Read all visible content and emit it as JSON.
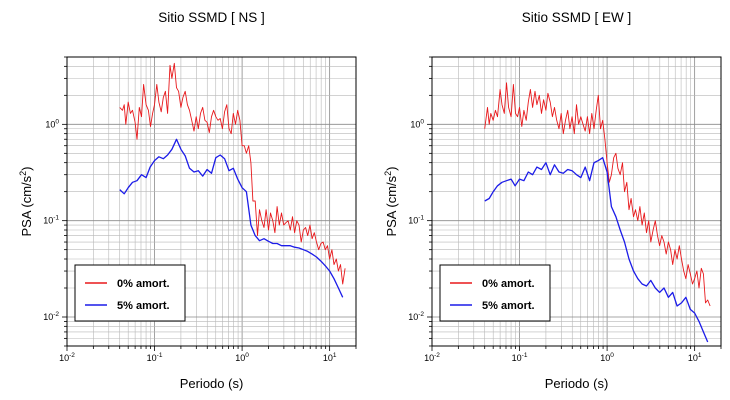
{
  "chart_data": [
    {
      "type": "line",
      "title": "Sitio SSMD [ NS ]",
      "xlabel": "Periodo (s)",
      "ylabel": {
        "pre": "PSA (cm/s",
        "sup": "2",
        "post": ")"
      },
      "xscale": "log",
      "yscale": "log",
      "xlim": [
        0.01,
        20
      ],
      "ylim": [
        0.005,
        5
      ],
      "grid": true,
      "legend_position": "bottom-left",
      "x_ticks": [
        {
          "base": "10",
          "exp": "-2"
        },
        {
          "base": "10",
          "exp": "-1"
        },
        {
          "base": "10",
          "exp": "0"
        },
        {
          "base": "10",
          "exp": "1"
        }
      ],
      "y_ticks": [
        {
          "base": "10",
          "exp": "-2"
        },
        {
          "base": "10",
          "exp": "-1"
        },
        {
          "base": "10",
          "exp": "0"
        }
      ],
      "series": [
        {
          "name": "0% amort.",
          "color": "#e8191c",
          "x": [
            0.04,
            0.043,
            0.045,
            0.047,
            0.05,
            0.053,
            0.056,
            0.06,
            0.063,
            0.067,
            0.071,
            0.075,
            0.08,
            0.085,
            0.09,
            0.095,
            0.1,
            0.106,
            0.112,
            0.119,
            0.126,
            0.133,
            0.141,
            0.15,
            0.158,
            0.168,
            0.178,
            0.188,
            0.2,
            0.211,
            0.224,
            0.237,
            0.251,
            0.266,
            0.282,
            0.299,
            0.316,
            0.335,
            0.355,
            0.376,
            0.398,
            0.422,
            0.447,
            0.473,
            0.501,
            0.531,
            0.562,
            0.596,
            0.631,
            0.668,
            0.708,
            0.75,
            0.794,
            0.841,
            0.891,
            0.944,
            1.0,
            1.06,
            1.12,
            1.19,
            1.26,
            1.33,
            1.41,
            1.5,
            1.58,
            1.68,
            1.78,
            1.88,
            2.0,
            2.11,
            2.24,
            2.37,
            2.51,
            2.66,
            2.82,
            2.99,
            3.16,
            3.35,
            3.55,
            3.76,
            3.98,
            4.22,
            4.47,
            4.73,
            5.01,
            5.31,
            5.62,
            5.96,
            6.31,
            6.68,
            7.08,
            7.5,
            7.94,
            8.41,
            8.91,
            9.44,
            10.0,
            10.6,
            11.2,
            11.9,
            12.6,
            13.3,
            14.1,
            15.0
          ],
          "y": [
            1.5,
            1.4,
            1.6,
            1.0,
            1.7,
            1.3,
            1.4,
            1.05,
            0.7,
            1.5,
            1.2,
            2.6,
            1.6,
            1.4,
            0.95,
            1.3,
            1.6,
            2.6,
            1.7,
            1.35,
            1.9,
            2.2,
            1.3,
            4.1,
            3.0,
            4.3,
            2.4,
            2.2,
            1.5,
            1.9,
            2.2,
            1.6,
            1.4,
            1.1,
            0.85,
            1.2,
            0.9,
            1.3,
            1.5,
            1.1,
            1.05,
            0.82,
            1.2,
            1.4,
            1.2,
            1.1,
            1.15,
            0.9,
            1.35,
            1.6,
            0.9,
            0.8,
            1.3,
            1.0,
            1.4,
            1.1,
            0.6,
            0.6,
            0.5,
            0.6,
            0.4,
            0.16,
            0.16,
            0.07,
            0.13,
            0.1,
            0.085,
            0.13,
            0.08,
            0.12,
            0.1,
            0.075,
            0.14,
            0.09,
            0.12,
            0.09,
            0.095,
            0.1,
            0.08,
            0.11,
            0.075,
            0.1,
            0.09,
            0.06,
            0.08,
            0.085,
            0.07,
            0.09,
            0.065,
            0.075,
            0.06,
            0.05,
            0.058,
            0.06,
            0.05,
            0.055,
            0.04,
            0.05,
            0.035,
            0.04,
            0.03,
            0.035,
            0.022,
            0.032
          ]
        },
        {
          "name": "5% amort.",
          "color": "#1c1ce8",
          "x": [
            0.04,
            0.045,
            0.05,
            0.056,
            0.063,
            0.071,
            0.08,
            0.089,
            0.1,
            0.112,
            0.126,
            0.141,
            0.158,
            0.178,
            0.2,
            0.224,
            0.251,
            0.282,
            0.316,
            0.355,
            0.398,
            0.447,
            0.501,
            0.562,
            0.631,
            0.708,
            0.794,
            0.891,
            1.0,
            1.12,
            1.26,
            1.41,
            1.58,
            1.78,
            2.0,
            2.24,
            2.51,
            2.82,
            3.16,
            3.55,
            3.98,
            4.47,
            5.01,
            5.62,
            6.31,
            7.08,
            7.94,
            8.91,
            10.0,
            11.2,
            12.6,
            14.1
          ],
          "y": [
            0.21,
            0.19,
            0.22,
            0.25,
            0.26,
            0.3,
            0.28,
            0.36,
            0.42,
            0.46,
            0.44,
            0.48,
            0.55,
            0.7,
            0.55,
            0.47,
            0.35,
            0.32,
            0.33,
            0.29,
            0.34,
            0.31,
            0.45,
            0.48,
            0.44,
            0.33,
            0.35,
            0.27,
            0.22,
            0.2,
            0.09,
            0.07,
            0.062,
            0.065,
            0.061,
            0.058,
            0.058,
            0.055,
            0.055,
            0.055,
            0.053,
            0.052,
            0.05,
            0.048,
            0.045,
            0.042,
            0.038,
            0.034,
            0.03,
            0.025,
            0.02,
            0.016
          ]
        }
      ]
    },
    {
      "type": "line",
      "title": "Sitio SSMD [ EW ]",
      "xlabel": "Periodo (s)",
      "ylabel": {
        "pre": "PSA (cm/s",
        "sup": "2",
        "post": ")"
      },
      "xscale": "log",
      "yscale": "log",
      "xlim": [
        0.01,
        20
      ],
      "ylim": [
        0.005,
        5
      ],
      "grid": true,
      "legend_position": "bottom-left",
      "x_ticks": [
        {
          "base": "10",
          "exp": "-2"
        },
        {
          "base": "10",
          "exp": "-1"
        },
        {
          "base": "10",
          "exp": "0"
        },
        {
          "base": "10",
          "exp": "1"
        }
      ],
      "y_ticks": [
        {
          "base": "10",
          "exp": "-2"
        },
        {
          "base": "10",
          "exp": "-1"
        },
        {
          "base": "10",
          "exp": "0"
        }
      ],
      "series": [
        {
          "name": "0% amort.",
          "color": "#e8191c",
          "x": [
            0.04,
            0.043,
            0.045,
            0.047,
            0.05,
            0.053,
            0.056,
            0.06,
            0.063,
            0.067,
            0.071,
            0.075,
            0.08,
            0.085,
            0.09,
            0.095,
            0.1,
            0.106,
            0.112,
            0.119,
            0.126,
            0.133,
            0.141,
            0.15,
            0.158,
            0.168,
            0.178,
            0.188,
            0.2,
            0.211,
            0.224,
            0.237,
            0.251,
            0.266,
            0.282,
            0.299,
            0.316,
            0.335,
            0.355,
            0.376,
            0.398,
            0.422,
            0.447,
            0.473,
            0.501,
            0.531,
            0.562,
            0.596,
            0.631,
            0.668,
            0.708,
            0.75,
            0.794,
            0.841,
            0.891,
            0.944,
            1.0,
            1.06,
            1.12,
            1.19,
            1.26,
            1.33,
            1.41,
            1.5,
            1.58,
            1.68,
            1.78,
            1.88,
            2.0,
            2.11,
            2.24,
            2.37,
            2.51,
            2.66,
            2.82,
            2.99,
            3.16,
            3.35,
            3.55,
            3.76,
            3.98,
            4.22,
            4.47,
            4.73,
            5.01,
            5.31,
            5.62,
            5.96,
            6.31,
            6.68,
            7.08,
            7.5,
            7.94,
            8.41,
            8.91,
            9.44,
            10.0,
            10.6,
            11.2,
            11.9,
            12.6,
            13.3,
            14.1,
            15.0
          ],
          "y": [
            0.9,
            1.5,
            1.0,
            1.3,
            1.1,
            1.4,
            1.2,
            2.3,
            1.6,
            1.3,
            2.7,
            1.5,
            1.2,
            2.6,
            1.3,
            1.2,
            1.5,
            0.95,
            1.4,
            1.1,
            1.7,
            2.3,
            1.5,
            2.2,
            1.6,
            2.0,
            1.3,
            1.8,
            1.4,
            2.1,
            1.7,
            1.2,
            1.5,
            1.1,
            0.9,
            1.3,
            0.8,
            1.1,
            1.4,
            0.9,
            1.2,
            0.8,
            1.6,
            1.0,
            1.2,
            1.0,
            0.85,
            1.2,
            0.8,
            1.3,
            0.9,
            1.4,
            2.0,
            0.9,
            1.1,
            0.7,
            0.4,
            0.25,
            0.3,
            0.45,
            0.5,
            0.35,
            0.3,
            0.4,
            0.2,
            0.25,
            0.13,
            0.17,
            0.11,
            0.13,
            0.1,
            0.14,
            0.09,
            0.12,
            0.075,
            0.1,
            0.06,
            0.08,
            0.1,
            0.07,
            0.055,
            0.07,
            0.06,
            0.045,
            0.06,
            0.05,
            0.035,
            0.05,
            0.04,
            0.055,
            0.04,
            0.03,
            0.025,
            0.035,
            0.028,
            0.022,
            0.025,
            0.03,
            0.02,
            0.032,
            0.028,
            0.014,
            0.015,
            0.013
          ]
        },
        {
          "name": "5% amort.",
          "color": "#1c1ce8",
          "x": [
            0.04,
            0.045,
            0.05,
            0.056,
            0.063,
            0.071,
            0.08,
            0.089,
            0.1,
            0.112,
            0.126,
            0.141,
            0.158,
            0.178,
            0.2,
            0.224,
            0.251,
            0.282,
            0.316,
            0.355,
            0.398,
            0.447,
            0.501,
            0.562,
            0.631,
            0.708,
            0.794,
            0.891,
            1.0,
            1.12,
            1.26,
            1.41,
            1.58,
            1.78,
            2.0,
            2.24,
            2.51,
            2.82,
            3.16,
            3.55,
            3.98,
            4.47,
            5.01,
            5.62,
            6.31,
            7.08,
            7.94,
            8.91,
            10.0,
            11.2,
            12.6,
            14.1
          ],
          "y": [
            0.16,
            0.17,
            0.2,
            0.23,
            0.25,
            0.26,
            0.27,
            0.23,
            0.27,
            0.26,
            0.32,
            0.3,
            0.36,
            0.34,
            0.4,
            0.3,
            0.38,
            0.32,
            0.31,
            0.34,
            0.33,
            0.3,
            0.28,
            0.36,
            0.26,
            0.4,
            0.42,
            0.45,
            0.32,
            0.14,
            0.11,
            0.08,
            0.06,
            0.04,
            0.03,
            0.025,
            0.022,
            0.021,
            0.024,
            0.02,
            0.018,
            0.02,
            0.016,
            0.018,
            0.013,
            0.014,
            0.016,
            0.012,
            0.011,
            0.009,
            0.007,
            0.0055
          ]
        }
      ]
    }
  ]
}
